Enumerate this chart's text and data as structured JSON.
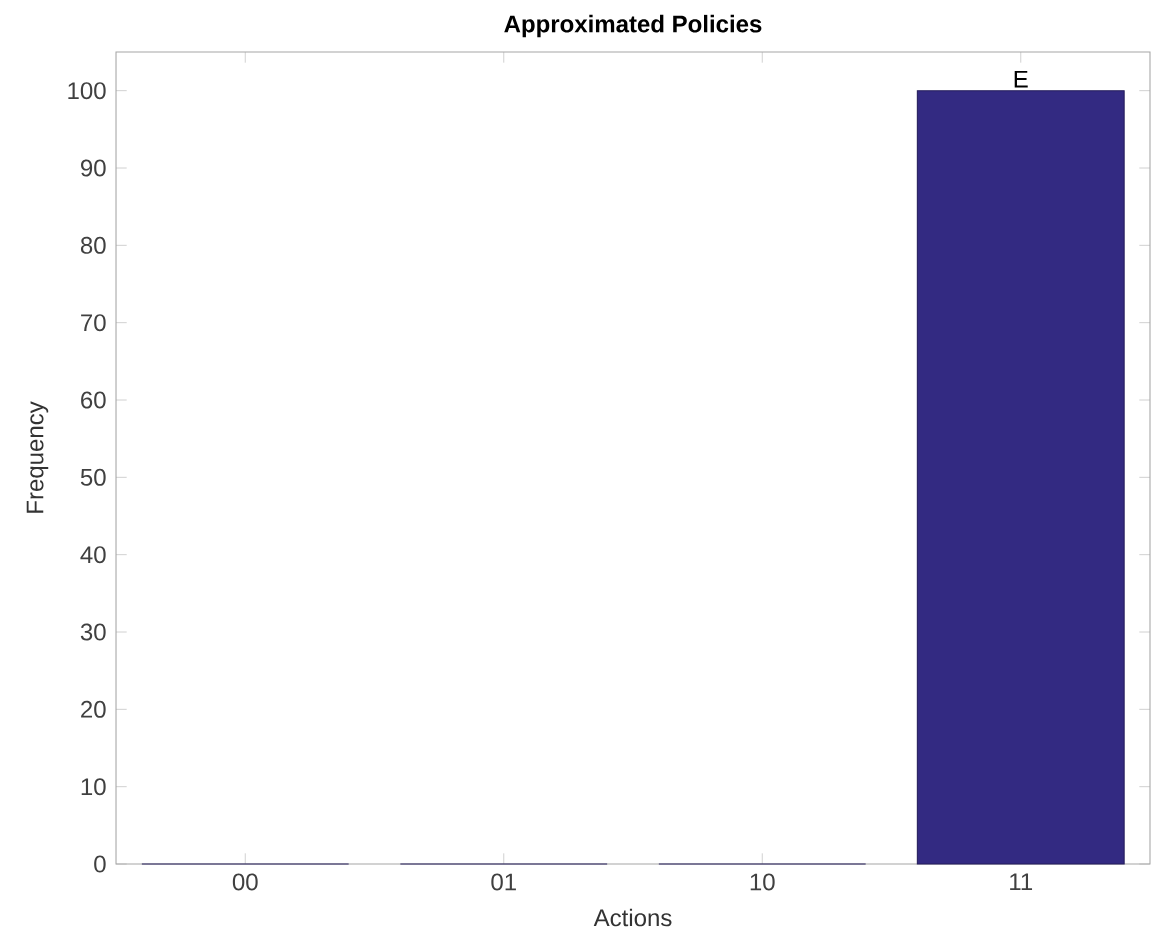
{
  "chart_data": {
    "type": "bar",
    "title": "Approximated Policies",
    "xlabel": "Actions",
    "ylabel": "Frequency",
    "categories": [
      "00",
      "01",
      "10",
      "11"
    ],
    "values": [
      0,
      0,
      0,
      100
    ],
    "color": "#332a82",
    "ylim": [
      0,
      105
    ],
    "yticks": [
      0,
      10,
      20,
      30,
      40,
      50,
      60,
      70,
      80,
      90,
      100
    ],
    "annotations": [
      {
        "text": "E",
        "x": "11",
        "y": 100
      }
    ]
  }
}
